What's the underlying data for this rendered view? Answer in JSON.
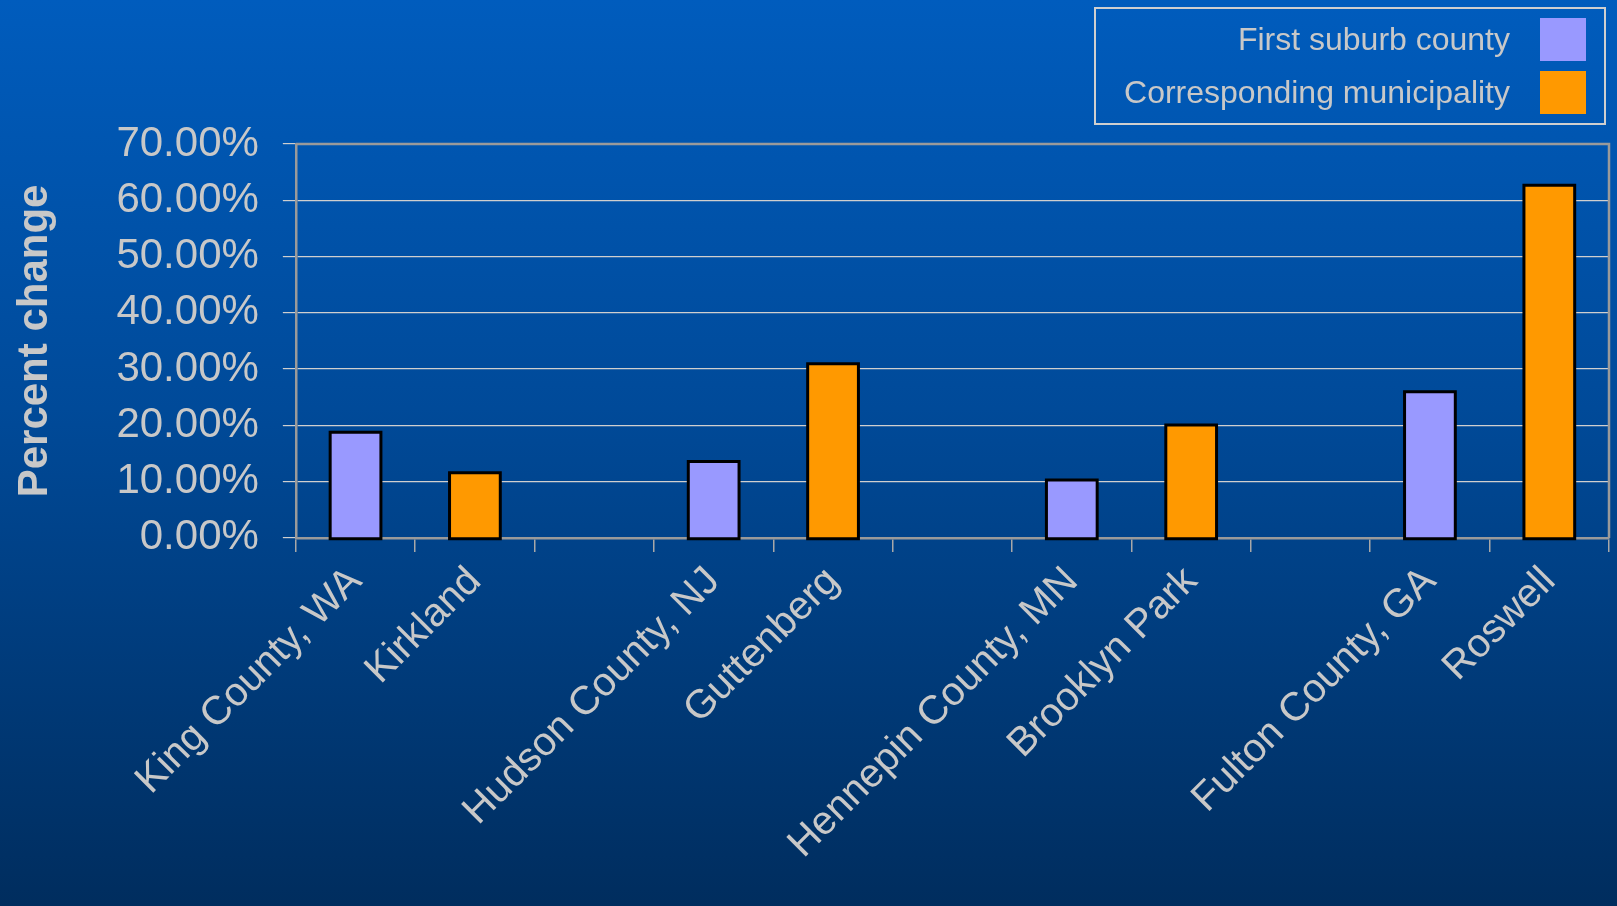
{
  "chart_data": {
    "type": "bar",
    "ylabel": "Percent change",
    "categories": [
      "King County, WA",
      "Kirkland",
      null,
      "Hudson County, NJ",
      "Guttenberg",
      null,
      "Hennepin County, MN",
      "Brooklyn Park",
      null,
      "Fulton County, GA",
      "Roswell"
    ],
    "series": [
      {
        "name": "First suburb county",
        "color": "#9999ff",
        "values": [
          18.5,
          null,
          null,
          13.3,
          null,
          null,
          10,
          null,
          null,
          25.7,
          null
        ]
      },
      {
        "name": "Corresponding municipality",
        "color": "#ff9900",
        "values": [
          null,
          11.3,
          null,
          null,
          30.7,
          null,
          null,
          19.8,
          null,
          null,
          62.4
        ]
      }
    ],
    "ylim": [
      0,
      70
    ],
    "yticks": [
      {
        "value": 0,
        "label": "0.00%"
      },
      {
        "value": 10,
        "label": "10.00%"
      },
      {
        "value": 20,
        "label": "20.00%"
      },
      {
        "value": 30,
        "label": "30.00%"
      },
      {
        "value": 40,
        "label": "40.00%"
      },
      {
        "value": 50,
        "label": "50.00%"
      },
      {
        "value": 60,
        "label": "60.00%"
      },
      {
        "value": 70,
        "label": "70.00%"
      }
    ],
    "grid": "y",
    "legend": "top right"
  }
}
